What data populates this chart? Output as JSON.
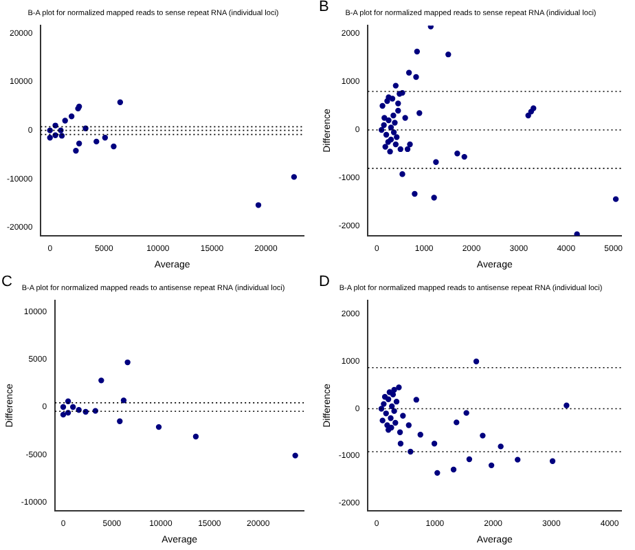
{
  "chart_data": [
    {
      "type": "scatter",
      "title": "B-A plot for normalized mapped reads to sense repeat RNA (individual loci)",
      "xlabel": "Average",
      "marker": "circle",
      "color": "#00007f",
      "x": [
        6500,
        2600,
        2700,
        2000,
        1400,
        3300,
        4300,
        5100,
        5900,
        2400,
        22600,
        19300,
        2700,
        0,
        500,
        500,
        1000,
        0,
        1100
      ],
      "values": [
        5800,
        4500,
        4900,
        2900,
        2000,
        400,
        -2300,
        -1500,
        -3300,
        -4200,
        -9600,
        -15400,
        -2700,
        0,
        1000,
        -1000,
        0,
        -1500,
        -1100
      ],
      "xlim": [
        -850,
        23500
      ],
      "ylim": [
        -21700,
        21600
      ],
      "xticks": [
        0,
        5000,
        10000,
        15000,
        20000
      ],
      "yticks": [
        -20000,
        -10000,
        0,
        10000,
        20000
      ],
      "ref_lines": [
        {
          "axis": "y",
          "value": 750,
          "line_style": "dotted"
        },
        {
          "axis": "y",
          "value": 0,
          "line_style": "dotted"
        },
        {
          "axis": "y",
          "value": -850,
          "line_style": "dotted"
        }
      ]
    },
    {
      "type": "scatter",
      "title": "B-A plot for normalized mapped reads to sense repeat RNA (individual loci)",
      "xlabel": "Average",
      "ylabel": "Difference",
      "annotations": [
        "B"
      ],
      "marker": "circle",
      "color": "#00007f",
      "x": [
        1140,
        850,
        1510,
        680,
        830,
        400,
        480,
        540,
        1700,
        1850,
        1250,
        540,
        800,
        1210,
        5050,
        4230,
        3200,
        3310,
        3260,
        100,
        150,
        200,
        250,
        300,
        350,
        400,
        450,
        500,
        120,
        180,
        220,
        280,
        330,
        380,
        420,
        160,
        240,
        300,
        360,
        600,
        700,
        900,
        650,
        450,
        250
      ],
      "values": [
        2150,
        1630,
        1570,
        1190,
        1100,
        920,
        750,
        770,
        -490,
        -560,
        -670,
        -920,
        -1330,
        -1410,
        -1440,
        -2170,
        300,
        450,
        380,
        0,
        100,
        -100,
        200,
        -200,
        300,
        -300,
        400,
        -400,
        500,
        -350,
        600,
        -450,
        650,
        150,
        -150,
        250,
        -250,
        50,
        -50,
        250,
        -300,
        350,
        -400,
        550,
        680
      ],
      "xlim": [
        -186,
        5165
      ],
      "ylim": [
        -2200,
        2170
      ],
      "xticks": [
        0,
        1000,
        2000,
        3000,
        4000,
        5000
      ],
      "yticks": [
        -2000,
        -1000,
        0,
        1000,
        2000
      ],
      "ref_lines": [
        {
          "axis": "y",
          "value": 800,
          "line_style": "dotted"
        },
        {
          "axis": "y",
          "value": 0,
          "line_style": "dotted"
        },
        {
          "axis": "y",
          "value": -800,
          "line_style": "dotted"
        }
      ]
    },
    {
      "type": "scatter",
      "title": "B-A plot for normalized mapped reads to antisense repeat RNA (individual loci)",
      "xlabel": "Average",
      "ylabel": "Difference",
      "annotations": [
        "C"
      ],
      "marker": "circle",
      "color": "#00007f",
      "x": [
        6600,
        3900,
        6200,
        5800,
        9800,
        13600,
        23800,
        3300,
        2300,
        1600,
        0,
        500,
        500,
        1000,
        0
      ],
      "values": [
        4700,
        2800,
        700,
        -1500,
        -2100,
        -3100,
        -5100,
        -400,
        -500,
        -300,
        0,
        600,
        -600,
        0,
        -800
      ],
      "xlim": [
        -835,
        24670
      ],
      "ylim": [
        -10900,
        11200
      ],
      "xticks": [
        0,
        5000,
        10000,
        15000,
        20000
      ],
      "yticks": [
        -10000,
        -5000,
        0,
        5000,
        10000
      ],
      "ref_lines": [
        {
          "axis": "y",
          "value": 450,
          "line_style": "dotted"
        },
        {
          "axis": "y",
          "value": -450,
          "line_style": "dotted"
        }
      ]
    },
    {
      "type": "scatter",
      "title": "B-A plot for normalized mapped reads to antisense repeat RNA (individual loci)",
      "xlabel": "Average",
      "ylabel": "Difference",
      "annotations": [
        "D"
      ],
      "marker": "circle",
      "color": "#00007f",
      "x": [
        1710,
        3260,
        1540,
        1370,
        1820,
        410,
        990,
        2130,
        580,
        1590,
        2420,
        1970,
        3020,
        1040,
        1320,
        750,
        380,
        680,
        80,
        120,
        160,
        200,
        240,
        280,
        320,
        100,
        140,
        180,
        220,
        260,
        300,
        340,
        200,
        250,
        300,
        450,
        550,
        400
      ],
      "values": [
        1000,
        70,
        -90,
        -290,
        -570,
        -740,
        -740,
        -800,
        -910,
        -1070,
        -1080,
        -1200,
        -1110,
        -1360,
        -1290,
        -550,
        450,
        190,
        0,
        100,
        -100,
        200,
        -200,
        300,
        -300,
        -250,
        250,
        -350,
        350,
        50,
        -50,
        150,
        -450,
        -400,
        400,
        -150,
        -350,
        -500
      ],
      "xlim": [
        -150,
        4200
      ],
      "ylim": [
        -2160,
        2290
      ],
      "xticks": [
        0,
        1000,
        2000,
        3000,
        4000
      ],
      "yticks": [
        -2000,
        -1000,
        0,
        1000,
        2000
      ],
      "ref_lines": [
        {
          "axis": "y",
          "value": 870,
          "line_style": "dotted"
        },
        {
          "axis": "y",
          "value": 0,
          "line_style": "dotted"
        },
        {
          "axis": "y",
          "value": -910,
          "line_style": "dotted"
        }
      ]
    }
  ]
}
